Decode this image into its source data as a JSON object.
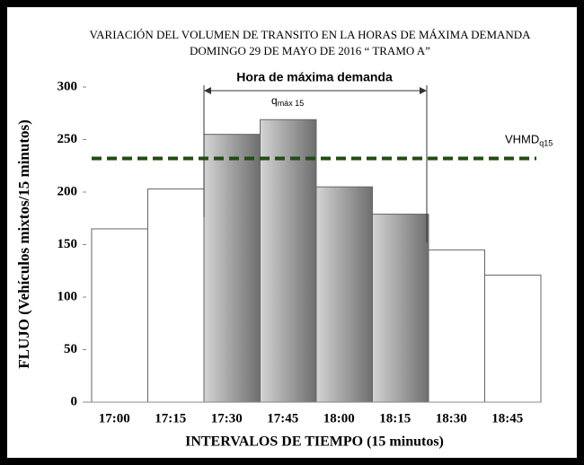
{
  "chart_data": {
    "type": "bar",
    "title": [
      "VARIACIÓN DEL VOLUMEN DE TRANSITO EN LA HORAS DE MÁXIMA DEMANDA",
      "DOMINGO 29 DE MAYO DE 2016 “ TRAMO A”"
    ],
    "x_label": "INTERVALOS DE TIEMPO (15 minutos)",
    "y_label": "FLUJO (Vehículos mixtos/15 minutos)",
    "categories": [
      "17:00",
      "17:15",
      "17:30",
      "17:45",
      "18:00",
      "18:15",
      "18:30",
      "18:45"
    ],
    "values": [
      165,
      203,
      255,
      269,
      205,
      179,
      145,
      121
    ],
    "colors": [
      "#ffffff",
      "#ffffff",
      "#6e6e6e",
      "#6e6e6e",
      "#6e6e6e",
      "#6e6e6e",
      "#ffffff",
      "#ffffff"
    ],
    "ylim": [
      0,
      300
    ],
    "yticks": [
      0,
      50,
      100,
      150,
      200,
      250,
      300
    ],
    "reference_line": {
      "value": 232,
      "label": "VHMD",
      "label_sub": "q15",
      "color": "#1f4d12"
    },
    "annotations": {
      "peak_hour": "Hora de máxima demanda",
      "q": "q",
      "q_sub": "máx 15"
    }
  }
}
